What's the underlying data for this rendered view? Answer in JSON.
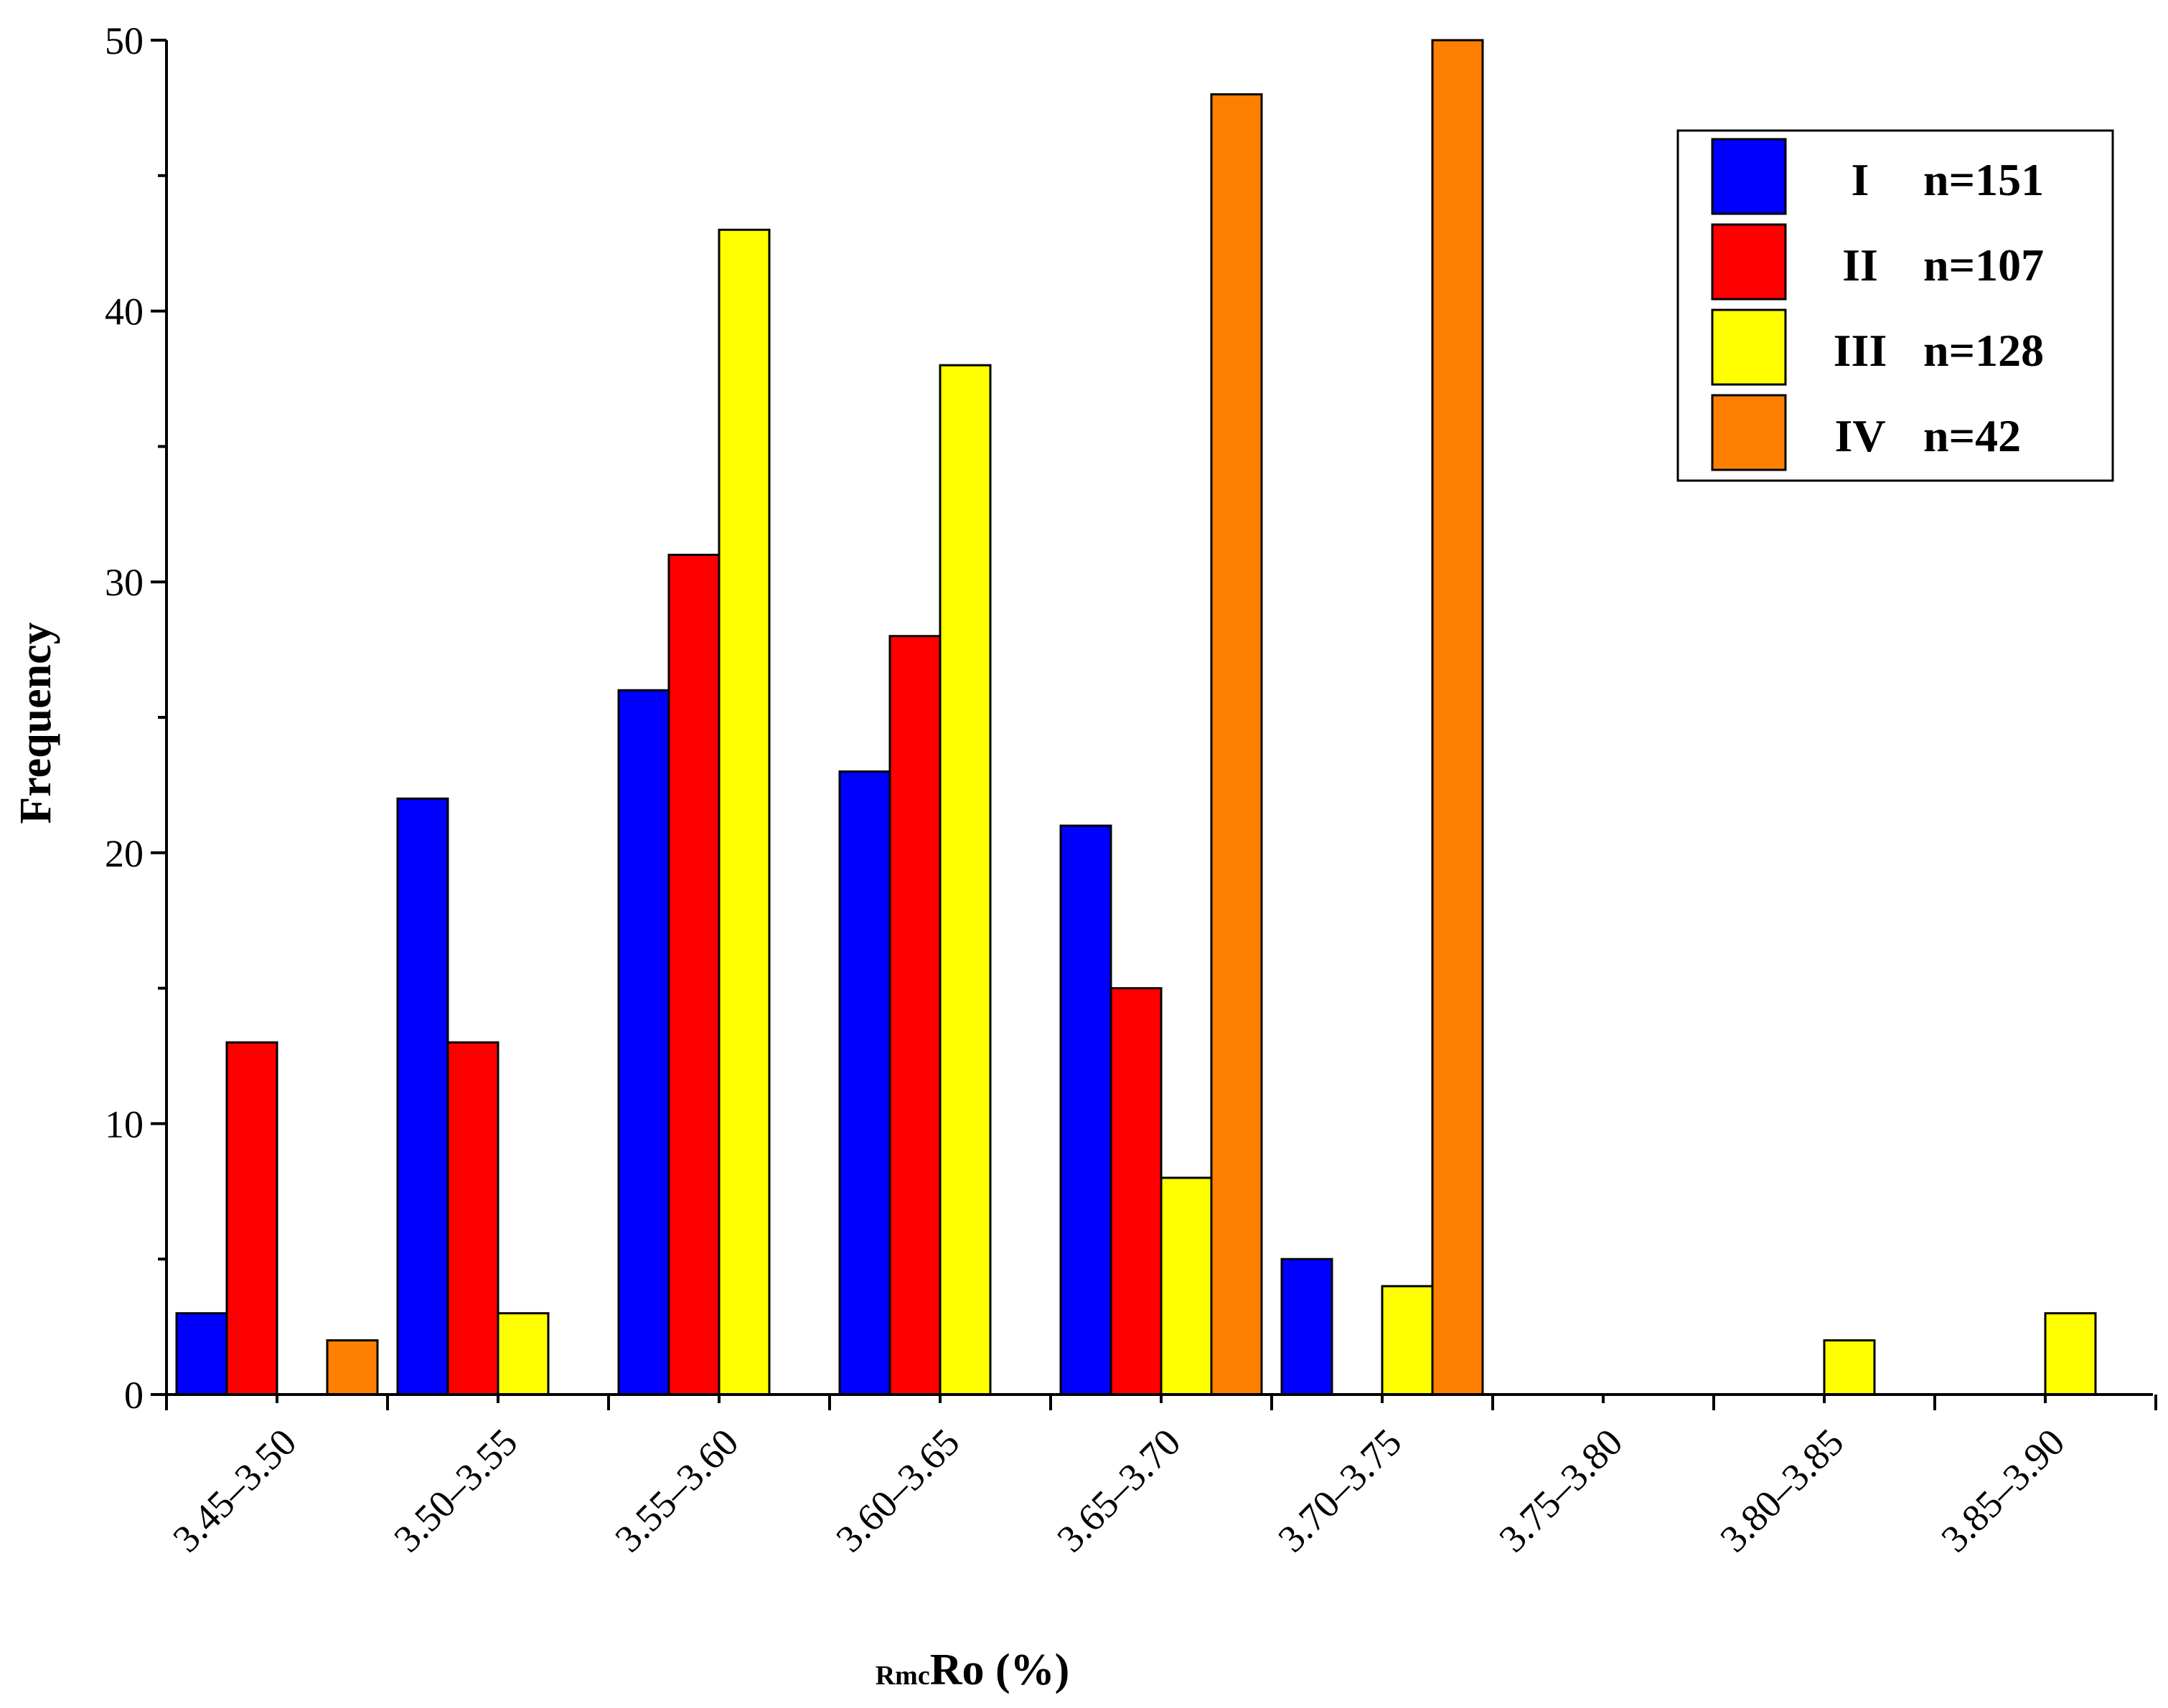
{
  "chart_data": {
    "type": "bar",
    "title": "",
    "xlabel": "Ro (%)",
    "xlabel_subscript": "Rmc",
    "ylabel": "Frequency",
    "ylim": [
      0,
      50
    ],
    "yticks": [
      "0",
      "10",
      "20",
      "30",
      "40",
      "50"
    ],
    "grid": false,
    "legend_position": "top-right",
    "categories": [
      "3.45–3.50",
      "3.50–3.55",
      "3.55–3.60",
      "3.60–3.65",
      "3.65–3.70",
      "3.70–3.75",
      "3.75–3.80",
      "3.80–3.85",
      "3.85–3.90"
    ],
    "series": [
      {
        "name": "I",
        "count_label": "n=151",
        "color": "#0000FF",
        "values": [
          3,
          22,
          26,
          23,
          21,
          5,
          0,
          0,
          0
        ]
      },
      {
        "name": "II",
        "count_label": "n=107",
        "color": "#FF0000",
        "values": [
          13,
          13,
          31,
          28,
          15,
          0,
          0,
          0,
          0
        ]
      },
      {
        "name": "III",
        "count_label": "n=128",
        "color": "#FFFF00",
        "values": [
          0,
          3,
          43,
          38,
          8,
          4,
          0,
          2,
          3
        ]
      },
      {
        "name": "IV",
        "count_label": "n=42",
        "color": "#FF8000",
        "values": [
          2,
          0,
          0,
          0,
          48,
          50,
          0,
          0,
          0
        ]
      }
    ]
  }
}
